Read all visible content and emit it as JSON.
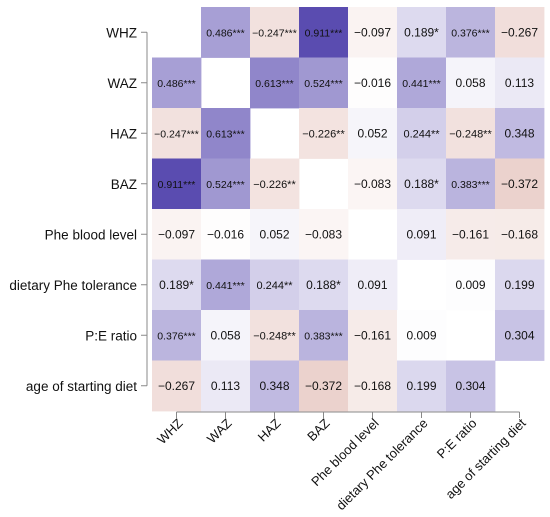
{
  "chart_data": {
    "type": "heatmap",
    "variables": [
      "WHZ",
      "WAZ",
      "HAZ",
      "BAZ",
      "Phe blood level",
      "dietary Phe tolerance",
      "P:E ratio",
      "age of starting diet"
    ],
    "row_labels": [
      "WHZ",
      "WAZ",
      "HAZ",
      "BAZ",
      "Phe blood level",
      "dietary Phe tolerance",
      "P:E ratio",
      "age of starting diet"
    ],
    "col_labels": [
      "WHZ",
      "WAZ",
      "HAZ",
      "BAZ",
      "Phe blood level",
      "dietary Phe tolerance",
      "P:E ratio",
      "age of starting diet"
    ],
    "value_range": [
      -1,
      1
    ],
    "diagonal_blank": true,
    "colors": {
      "positive": "#4a3aa8",
      "negative": "#c98578",
      "neutral": "#ffffff"
    },
    "cells": [
      [
        null,
        "0.486***",
        "−0.247***",
        "0.911***",
        "−0.097",
        "0.189*",
        "0.376***",
        "−0.267"
      ],
      [
        "0.486***",
        null,
        "0.613***",
        "0.524***",
        "−0.016",
        "0.441***",
        "0.058",
        "0.113"
      ],
      [
        "−0.247***",
        "0.613***",
        null,
        "−0.226**",
        "0.052",
        "0.244**",
        "−0.248**",
        "0.348"
      ],
      [
        "0.911***",
        "0.524***",
        "−0.226**",
        null,
        "−0.083",
        "0.188*",
        "0.383***",
        "−0.372"
      ],
      [
        "−0.097",
        "−0.016",
        "0.052",
        "−0.083",
        null,
        "0.091",
        "−0.161",
        "−0.168"
      ],
      [
        "0.189*",
        "0.441***",
        "0.244**",
        "0.188*",
        "0.091",
        null,
        "0.009",
        "0.199"
      ],
      [
        "0.376***",
        "0.058",
        "−0.248**",
        "0.383***",
        "−0.161",
        "0.009",
        null,
        "0.304"
      ],
      [
        "−0.267",
        "0.113",
        "0.348",
        "−0.372",
        "−0.168",
        "0.199",
        "0.304",
        null
      ]
    ]
  }
}
